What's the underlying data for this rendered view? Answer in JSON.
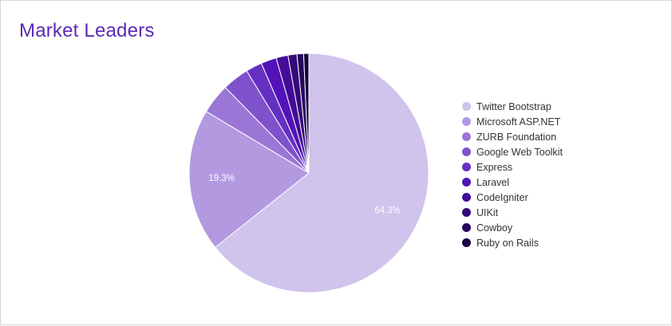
{
  "chart_data": {
    "type": "pie",
    "title": "Market Leaders",
    "categories": [
      "Twitter Bootstrap",
      "Microsoft ASP.NET",
      "ZURB Foundation",
      "Google Web Toolkit",
      "Express",
      "Laravel",
      "CodeIgniter",
      "UIKit",
      "Cowboy",
      "Ruby on Rails"
    ],
    "values": [
      64.3,
      19.3,
      4.1,
      3.6,
      2.2,
      2.1,
      1.6,
      1.2,
      0.9,
      0.7
    ],
    "data_labels": [
      "64.3%",
      "19.3%",
      "",
      "",
      "",
      "",
      "",
      "",
      "",
      ""
    ],
    "colors": [
      "#d0c3ec",
      "#b39ae0",
      "#9b76d6",
      "#7f52cc",
      "#6530c2",
      "#5313b8",
      "#430c99",
      "#35097a",
      "#27065c",
      "#19043f"
    ],
    "legend": "right"
  }
}
